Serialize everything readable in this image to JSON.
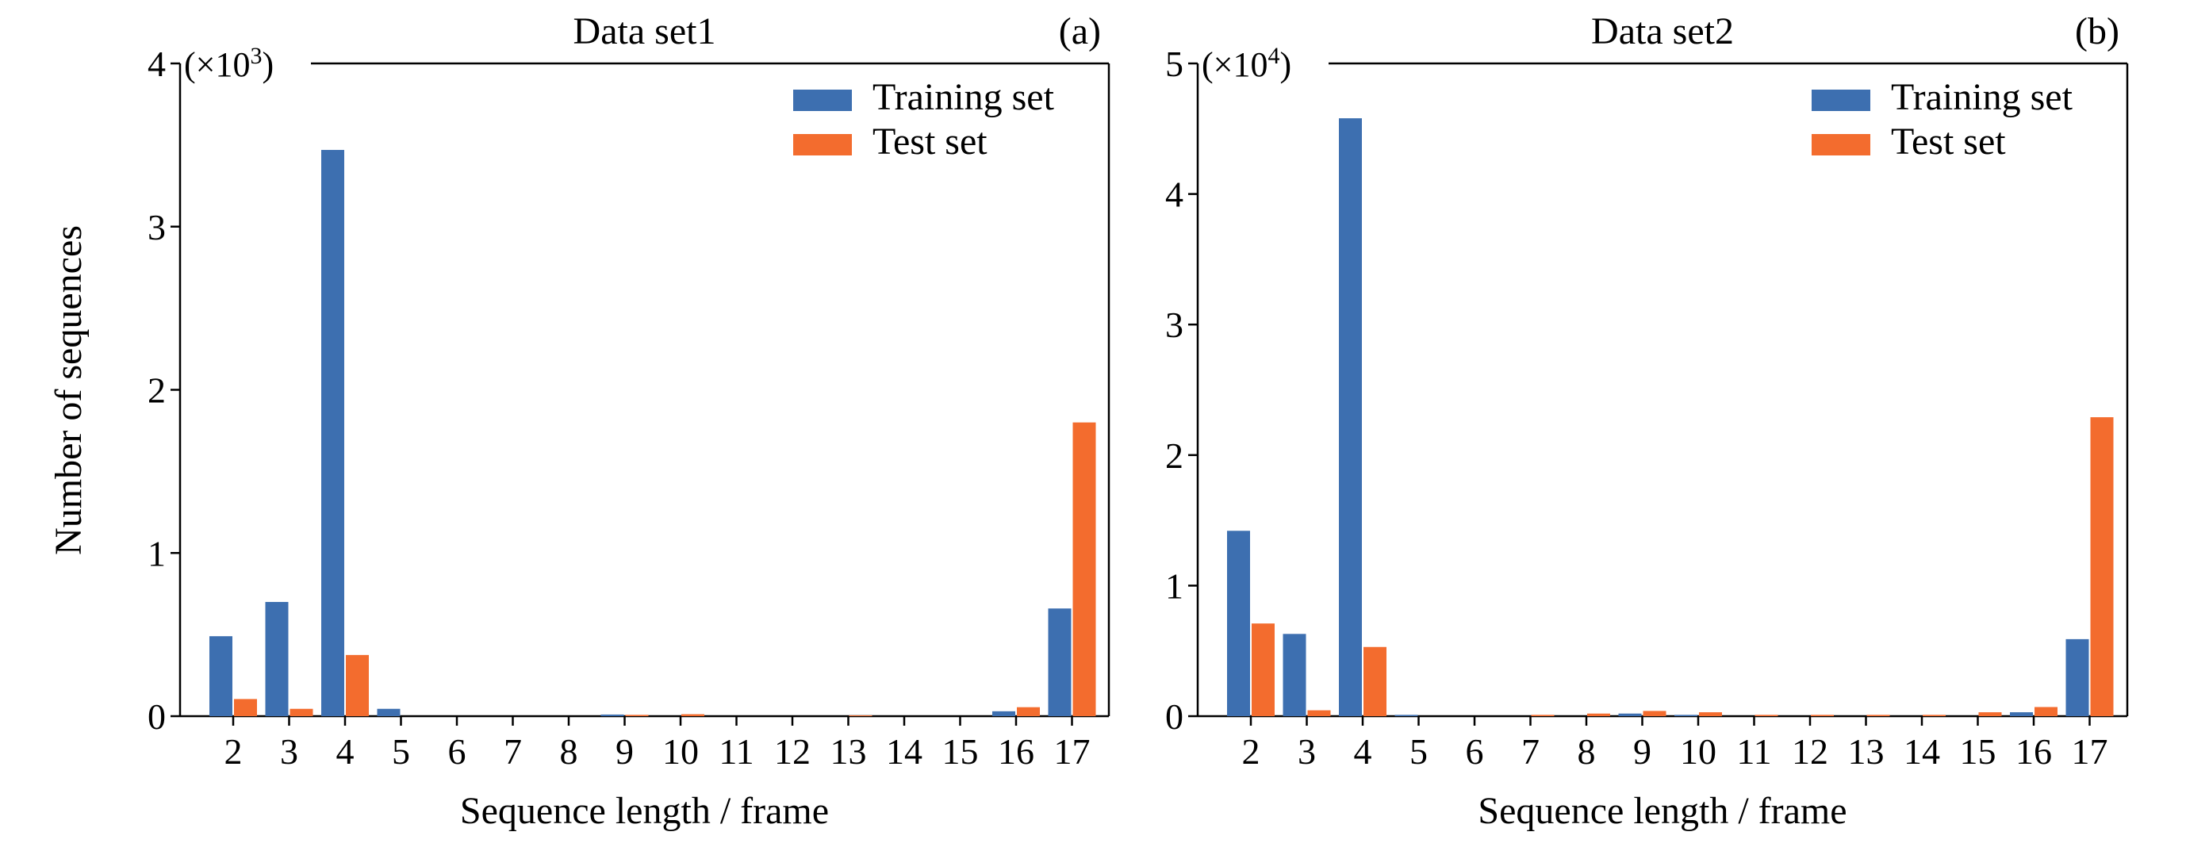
{
  "colors": {
    "training": "#3d6fb0",
    "test": "#f36c2e",
    "axis": "#000000",
    "background": "#ffffff"
  },
  "shared": {
    "ylabel": "Number of sequences",
    "xlabel": "Sequence length / frame",
    "legend": [
      "Training set",
      "Test set"
    ],
    "legend_position": "top-right"
  },
  "chart_data": [
    {
      "type": "bar",
      "title": "Data set1",
      "panel_label": "(a)",
      "xlabel": "Sequence length / frame",
      "ylabel": "Number of sequences",
      "scale_label": "(×10",
      "scale_exp": "3",
      "scale_close": ")",
      "ylim": [
        0,
        4
      ],
      "yticks": [
        "0",
        "1",
        "2",
        "3",
        "4"
      ],
      "categories": [
        "2",
        "3",
        "4",
        "5",
        "6",
        "7",
        "8",
        "9",
        "10",
        "11",
        "12",
        "13",
        "14",
        "15",
        "16",
        "17"
      ],
      "series": [
        {
          "name": "Training set",
          "values": [
            0.49,
            0.7,
            3.47,
            0.045,
            0,
            0,
            0,
            0.01,
            0,
            0,
            0,
            0,
            0,
            0,
            0.03,
            0.66
          ]
        },
        {
          "name": "Test set",
          "values": [
            0.105,
            0.045,
            0.375,
            0,
            0,
            0,
            0,
            0.008,
            0.012,
            0,
            0,
            0.005,
            0,
            0,
            0.055,
            1.8
          ]
        }
      ],
      "grid": false,
      "legend_position": "top-right"
    },
    {
      "type": "bar",
      "title": "Data set2",
      "panel_label": "(b)",
      "xlabel": "Sequence length / frame",
      "ylabel": "",
      "scale_label": "(×10",
      "scale_exp": "4",
      "scale_close": ")",
      "ylim": [
        0,
        5
      ],
      "yticks": [
        "0",
        "1",
        "2",
        "3",
        "4",
        "5"
      ],
      "categories": [
        "2",
        "3",
        "4",
        "5",
        "6",
        "7",
        "8",
        "9",
        "10",
        "11",
        "12",
        "13",
        "14",
        "15",
        "16",
        "17"
      ],
      "series": [
        {
          "name": "Training set",
          "values": [
            1.42,
            0.63,
            4.58,
            0.01,
            0,
            0,
            0,
            0.02,
            0.01,
            0,
            0,
            0,
            0,
            0,
            0.03,
            0.59
          ]
        },
        {
          "name": "Test set",
          "values": [
            0.71,
            0.045,
            0.53,
            0,
            0,
            0.01,
            0.02,
            0.04,
            0.03,
            0.01,
            0.01,
            0.01,
            0.01,
            0.03,
            0.07,
            2.29
          ]
        }
      ],
      "grid": false,
      "legend_position": "top-right"
    }
  ]
}
